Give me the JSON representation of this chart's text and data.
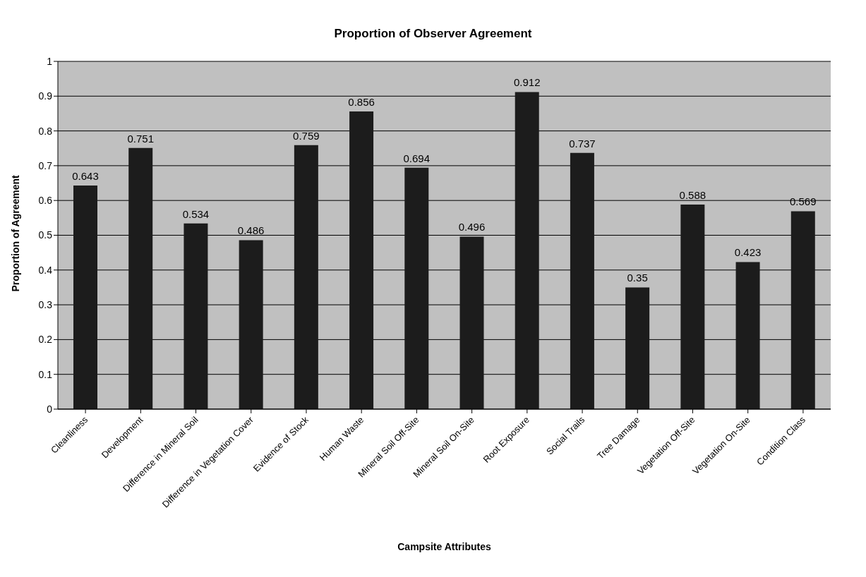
{
  "chart_data": {
    "type": "bar",
    "title": "Proportion of Observer Agreement",
    "xlabel": "Campsite Attributes",
    "ylabel": "Proportion of Agreement",
    "categories": [
      "Cleanliness",
      "Development",
      "Difference in Mineral Soil",
      "Difference in Vegetation Cover",
      "Evidence of Stock",
      "Human Waste",
      "Mineral Soil Off-Site",
      "Mineral Soil On-Site",
      "Root Exposure",
      "Social Trails",
      "Tree Damage",
      "Vegetation Off-Site",
      "Vegetation On-Site",
      "Condition Class"
    ],
    "values": [
      0.643,
      0.751,
      0.534,
      0.486,
      0.759,
      0.856,
      0.694,
      0.496,
      0.912,
      0.737,
      0.35,
      0.588,
      0.423,
      0.569
    ],
    "color": "#1c1c1c",
    "ylim": [
      0,
      1
    ],
    "yticks": [
      0,
      0.1,
      0.2,
      0.3,
      0.4,
      0.5,
      0.6,
      0.7,
      0.8,
      0.9,
      1
    ],
    "grid": "y",
    "data_labels": true,
    "legend": false
  }
}
